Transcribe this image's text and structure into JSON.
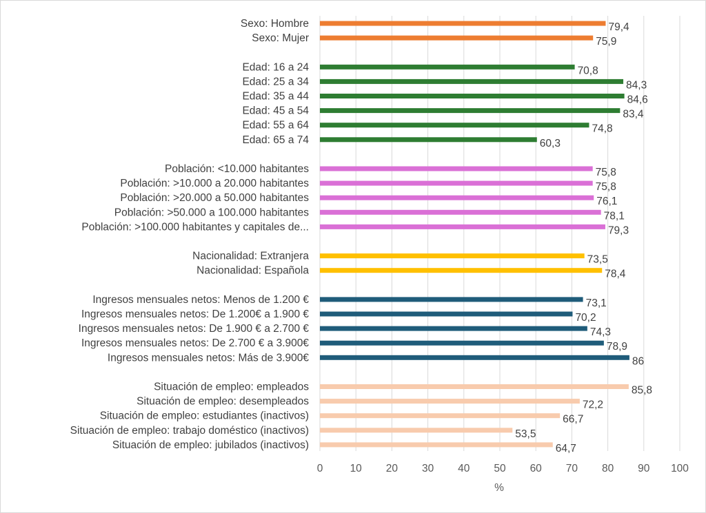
{
  "chart_data": {
    "type": "bar",
    "orientation": "horizontal",
    "xlabel": "%",
    "ylabel": "",
    "xlim": [
      0,
      100
    ],
    "xticks": [
      0,
      10,
      20,
      30,
      40,
      50,
      60,
      70,
      80,
      90,
      100
    ],
    "grid": true,
    "groups": [
      {
        "name": "Sexo",
        "color": "#ED7D31",
        "items": [
          {
            "label": "Sexo: Hombre",
            "value": 79.4,
            "value_text": "79,4"
          },
          {
            "label": "Sexo: Mujer",
            "value": 75.9,
            "value_text": "75,9"
          }
        ]
      },
      {
        "name": "Edad",
        "color": "#2E7D32",
        "items": [
          {
            "label": "Edad: 16 a 24",
            "value": 70.8,
            "value_text": "70,8"
          },
          {
            "label": "Edad: 25 a 34",
            "value": 84.3,
            "value_text": "84,3"
          },
          {
            "label": "Edad: 35 a 44",
            "value": 84.6,
            "value_text": "84,6"
          },
          {
            "label": "Edad: 45 a 54",
            "value": 83.4,
            "value_text": "83,4"
          },
          {
            "label": "Edad: 55 a 64",
            "value": 74.8,
            "value_text": "74,8"
          },
          {
            "label": "Edad: 65 a 74",
            "value": 60.3,
            "value_text": "60,3"
          }
        ]
      },
      {
        "name": "Población",
        "color": "#DA70D6",
        "items": [
          {
            "label": "Población: <10.000 habitantes",
            "value": 75.8,
            "value_text": "75,8"
          },
          {
            "label": "Población: >10.000 a 20.000 habitantes",
            "value": 75.8,
            "value_text": "75,8"
          },
          {
            "label": "Población: >20.000 a 50.000 habitantes",
            "value": 76.1,
            "value_text": "76,1"
          },
          {
            "label": "Población: >50.000 a 100.000 habitantes",
            "value": 78.1,
            "value_text": "78,1"
          },
          {
            "label": "Población: >100.000 habitantes y capitales de...",
            "value": 79.3,
            "value_text": "79,3"
          }
        ]
      },
      {
        "name": "Nacionalidad",
        "color": "#FFC000",
        "items": [
          {
            "label": "Nacionalidad: Extranjera",
            "value": 73.5,
            "value_text": "73,5"
          },
          {
            "label": "Nacionalidad: Española",
            "value": 78.4,
            "value_text": "78,4"
          }
        ]
      },
      {
        "name": "Ingresos",
        "color": "#1F5C7A",
        "items": [
          {
            "label": "Ingresos mensuales netos: Menos de 1.200 €",
            "value": 73.1,
            "value_text": "73,1"
          },
          {
            "label": "Ingresos mensuales netos: De 1.200€ a 1.900 €",
            "value": 70.2,
            "value_text": "70,2"
          },
          {
            "label": "Ingresos mensuales netos: De 1.900 € a 2.700 €",
            "value": 74.3,
            "value_text": "74,3"
          },
          {
            "label": "Ingresos mensuales netos: De 2.700 € a 3.900€",
            "value": 78.9,
            "value_text": "78,9"
          },
          {
            "label": "Ingresos mensuales netos: Más de 3.900€",
            "value": 86,
            "value_text": "86"
          }
        ]
      },
      {
        "name": "Situación de empleo",
        "color": "#F8CBAD",
        "items": [
          {
            "label": "Situación de empleo: empleados",
            "value": 85.8,
            "value_text": "85,8"
          },
          {
            "label": "Situación de empleo: desempleados",
            "value": 72.2,
            "value_text": "72,2"
          },
          {
            "label": "Situación de empleo: estudiantes (inactivos)",
            "value": 66.7,
            "value_text": "66,7"
          },
          {
            "label": "Situación de empleo: trabajo doméstico (inactivos)",
            "value": 53.5,
            "value_text": "53,5"
          },
          {
            "label": "Situación de empleo: jubilados (inactivos)",
            "value": 64.7,
            "value_text": "64,7"
          }
        ]
      }
    ]
  }
}
